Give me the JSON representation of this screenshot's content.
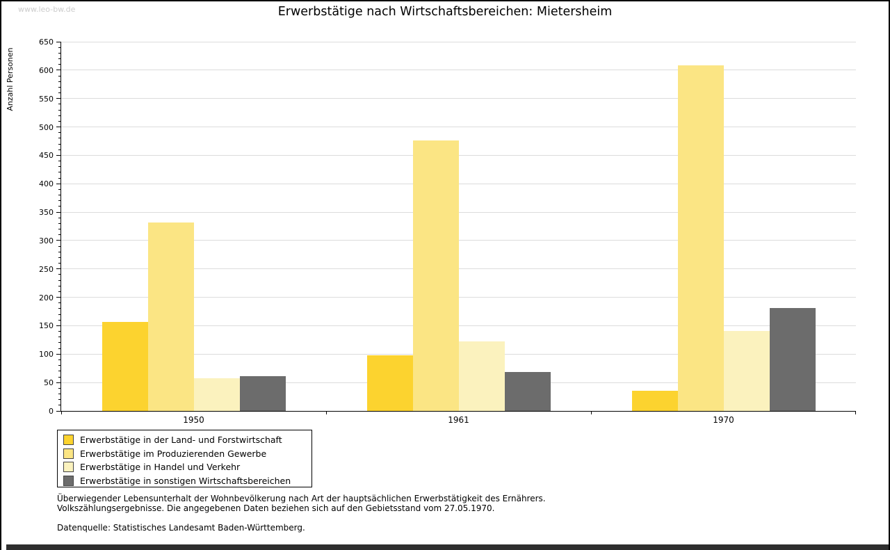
{
  "page": {
    "watermark": "www.leo-bw.de",
    "title": "Erwerbstätige nach Wirtschaftsbereichen: Mietersheim"
  },
  "chart_data": {
    "type": "bar",
    "title": "Erwerbstätige nach Wirtschaftsbereichen: Mietersheim",
    "xlabel": "",
    "ylabel": "Anzahl Personen",
    "ylim": [
      0,
      650
    ],
    "yticks": [
      0,
      50,
      100,
      150,
      200,
      250,
      300,
      350,
      400,
      450,
      500,
      550,
      600,
      650
    ],
    "ytick_step": 50,
    "ytick_minor_step": 10,
    "grid": "horizontal-major",
    "legend_position": "bottom-left-box",
    "categories": [
      "1950",
      "1961",
      "1970"
    ],
    "series": [
      {
        "name": "Erwerbstätige in der Land- und Forstwirtschaft",
        "color": "#FCD32F",
        "values": [
          157,
          98,
          35
        ]
      },
      {
        "name": "Erwerbstätige im Produzierenden Gewerbe",
        "color": "#FBE584",
        "values": [
          332,
          476,
          609
        ]
      },
      {
        "name": "Erwerbstätige in Handel und Verkehr",
        "color": "#FBF2BE",
        "values": [
          57,
          122,
          141
        ]
      },
      {
        "name": "Erwerbstätige in sonstigen Wirtschaftsbereichen",
        "color": "#6C6C6C",
        "values": [
          61,
          68,
          181
        ]
      }
    ],
    "axis_color": "#000000",
    "gridline_color": "#dcdcdc"
  },
  "footnotes": {
    "line1": "Überwiegender Lebensunterhalt der Wohnbevölkerung nach Art der hauptsächlichen Erwerbstätigkeit des Ernährers.",
    "line2": "Volkszählungsergebnisse. Die angegebenen Daten beziehen sich auf den Gebietsstand vom 27.05.1970.",
    "source": "Datenquelle: Statistisches Landesamt Baden-Württemberg."
  }
}
